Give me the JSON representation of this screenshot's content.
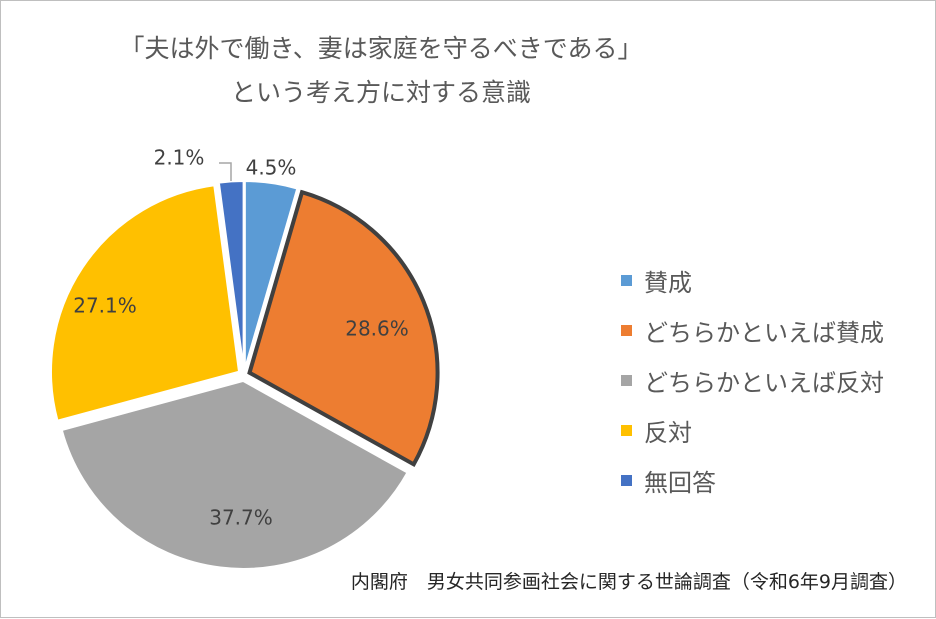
{
  "chart_data": {
    "type": "pie",
    "title": [
      "「夫は外で働き、妻は家庭を守るべきである」",
      "という考え方に対する意識"
    ],
    "categories": [
      "賛成",
      "どちらかといえば賛成",
      "どちらかといえば反対",
      "反対",
      "無回答"
    ],
    "values": [
      4.5,
      28.6,
      37.7,
      27.1,
      2.1
    ],
    "value_labels": [
      "4.5%",
      "28.6%",
      "37.7%",
      "27.1%",
      "2.1%"
    ],
    "colors": [
      "#5B9BD5",
      "#ED7D31",
      "#A5A5A5",
      "#FFC000",
      "#4472C4"
    ],
    "start_angle_deg": 0,
    "direction": "clockwise",
    "highlighted_slice": "どちらかといえば賛成",
    "legend_position": "right"
  },
  "source_note": "内閣府　男女共同参画社会に関する世論調査（令和6年9月調査）"
}
